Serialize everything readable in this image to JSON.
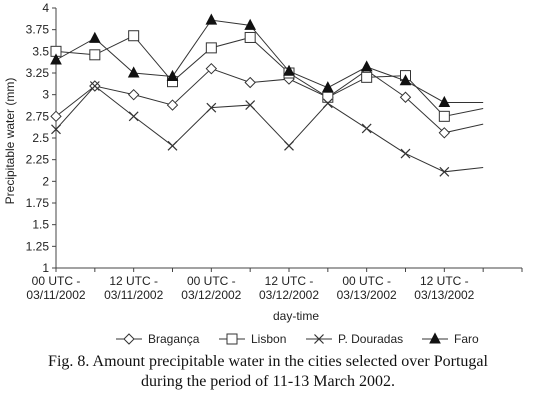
{
  "chart_data": {
    "type": "line",
    "title": "",
    "xlabel": "day-time",
    "ylabel": "Precipitable water (mm)",
    "ylim": [
      1,
      4
    ],
    "yticks": [
      "1",
      "1.25",
      "1.5",
      "1.75",
      "2",
      "2.25",
      "2.5",
      "2.75",
      "3",
      "3.25",
      "3.5",
      "3.75",
      "4"
    ],
    "xtick_labels": [
      {
        "line1": "00 UTC -",
        "line2": "03/11/2002"
      },
      {
        "line1": "12 UTC -",
        "line2": "03/11/2002"
      },
      {
        "line1": "00 UTC -",
        "line2": "03/12/2002"
      },
      {
        "line1": "12 UTC -",
        "line2": "03/12/2002"
      },
      {
        "line1": "00 UTC -",
        "line2": "03/13/2002"
      },
      {
        "line1": "12 UTC -",
        "line2": "03/13/2002"
      }
    ],
    "grid": false,
    "legend_position": "bottom",
    "series": [
      {
        "name": "Bragança",
        "marker": "diamond",
        "values": [
          2.75,
          3.1,
          3.0,
          2.88,
          3.3,
          3.14,
          3.18,
          2.97,
          3.28,
          2.97,
          2.56,
          2.66
        ]
      },
      {
        "name": "Lisbon",
        "marker": "square",
        "values": [
          3.5,
          3.46,
          3.68,
          3.15,
          3.54,
          3.66,
          3.25,
          2.97,
          3.2,
          3.22,
          2.75,
          2.84
        ]
      },
      {
        "name": "P. Douradas",
        "marker": "x",
        "values": [
          2.6,
          3.1,
          2.75,
          2.41,
          2.85,
          2.88,
          2.41,
          2.9,
          2.61,
          2.32,
          2.11,
          2.16
        ]
      },
      {
        "name": "Faro",
        "marker": "triangle",
        "values": [
          3.4,
          3.65,
          3.25,
          3.21,
          3.86,
          3.8,
          3.27,
          3.08,
          3.32,
          3.16,
          2.91,
          2.91
        ]
      }
    ]
  },
  "caption": {
    "line1": "Fig. 8. Amount precipitable water in the cities selected over Portugal",
    "line2": "during the period of 11-13 March 2002."
  }
}
